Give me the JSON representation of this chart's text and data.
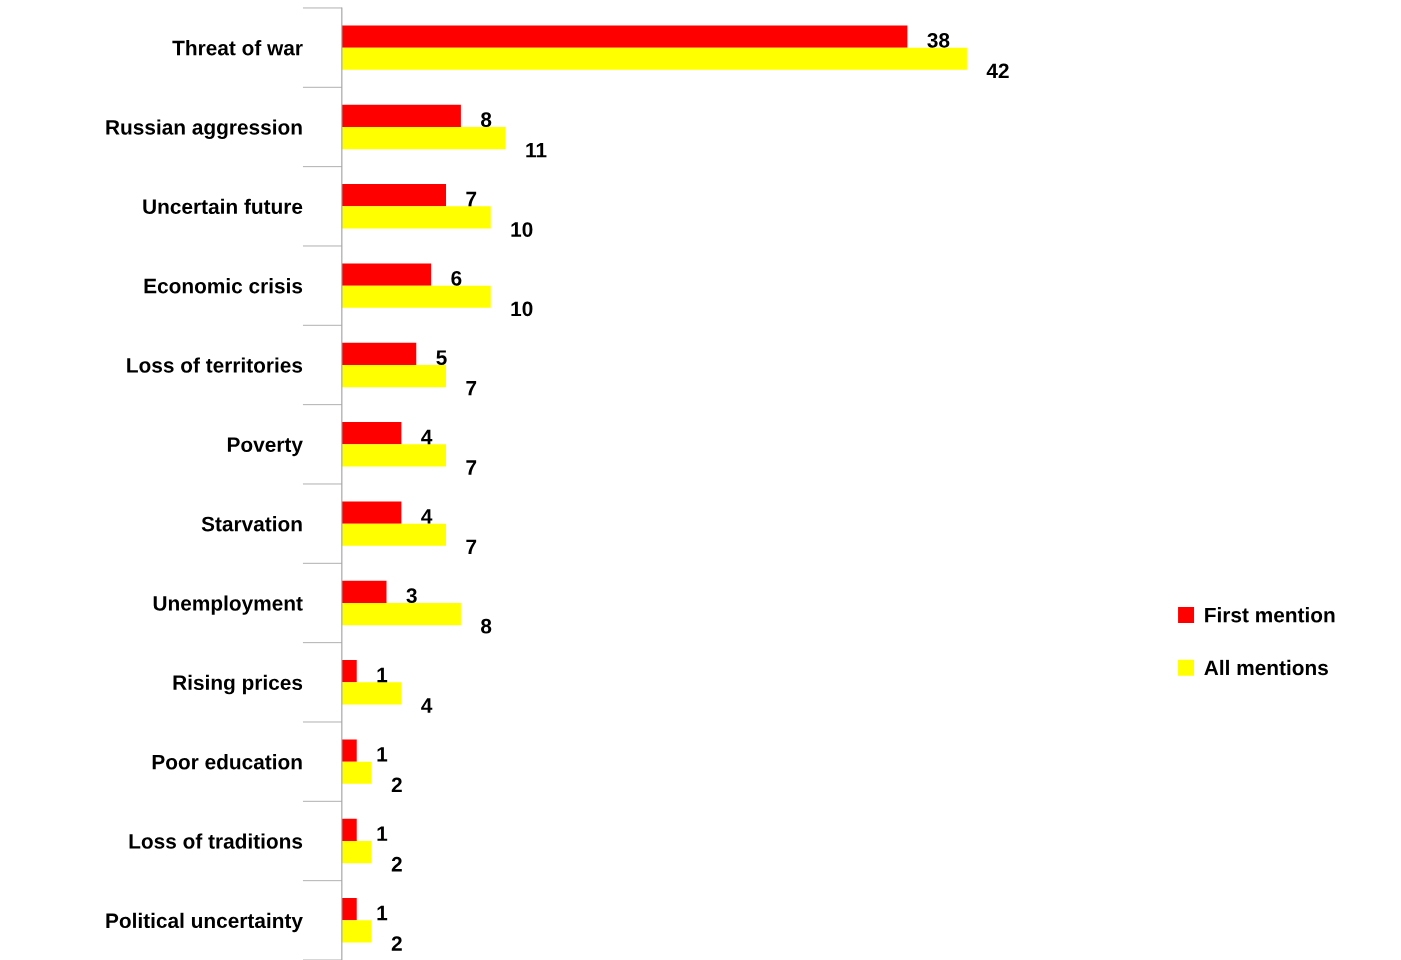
{
  "chart_data": {
    "type": "bar",
    "orientation": "horizontal",
    "categories": [
      "Threat of war",
      "Russian aggression",
      "Uncertain future",
      "Economic crisis",
      "Loss of territories",
      "Poverty",
      "Starvation",
      "Unemployment",
      "Rising prices",
      "Poor education",
      "Loss of traditions",
      "Political uncertainty"
    ],
    "series": [
      {
        "name": "First mention",
        "color": "#ff0000",
        "values": [
          38,
          8,
          7,
          6,
          5,
          4,
          4,
          3,
          1,
          1,
          1,
          1
        ]
      },
      {
        "name": "All mentions",
        "color": "#ffff00",
        "values": [
          42,
          11,
          10,
          10,
          7,
          7,
          7,
          8,
          4,
          2,
          2,
          2
        ]
      }
    ],
    "data_labels": true,
    "legend": "right",
    "grid": false
  }
}
